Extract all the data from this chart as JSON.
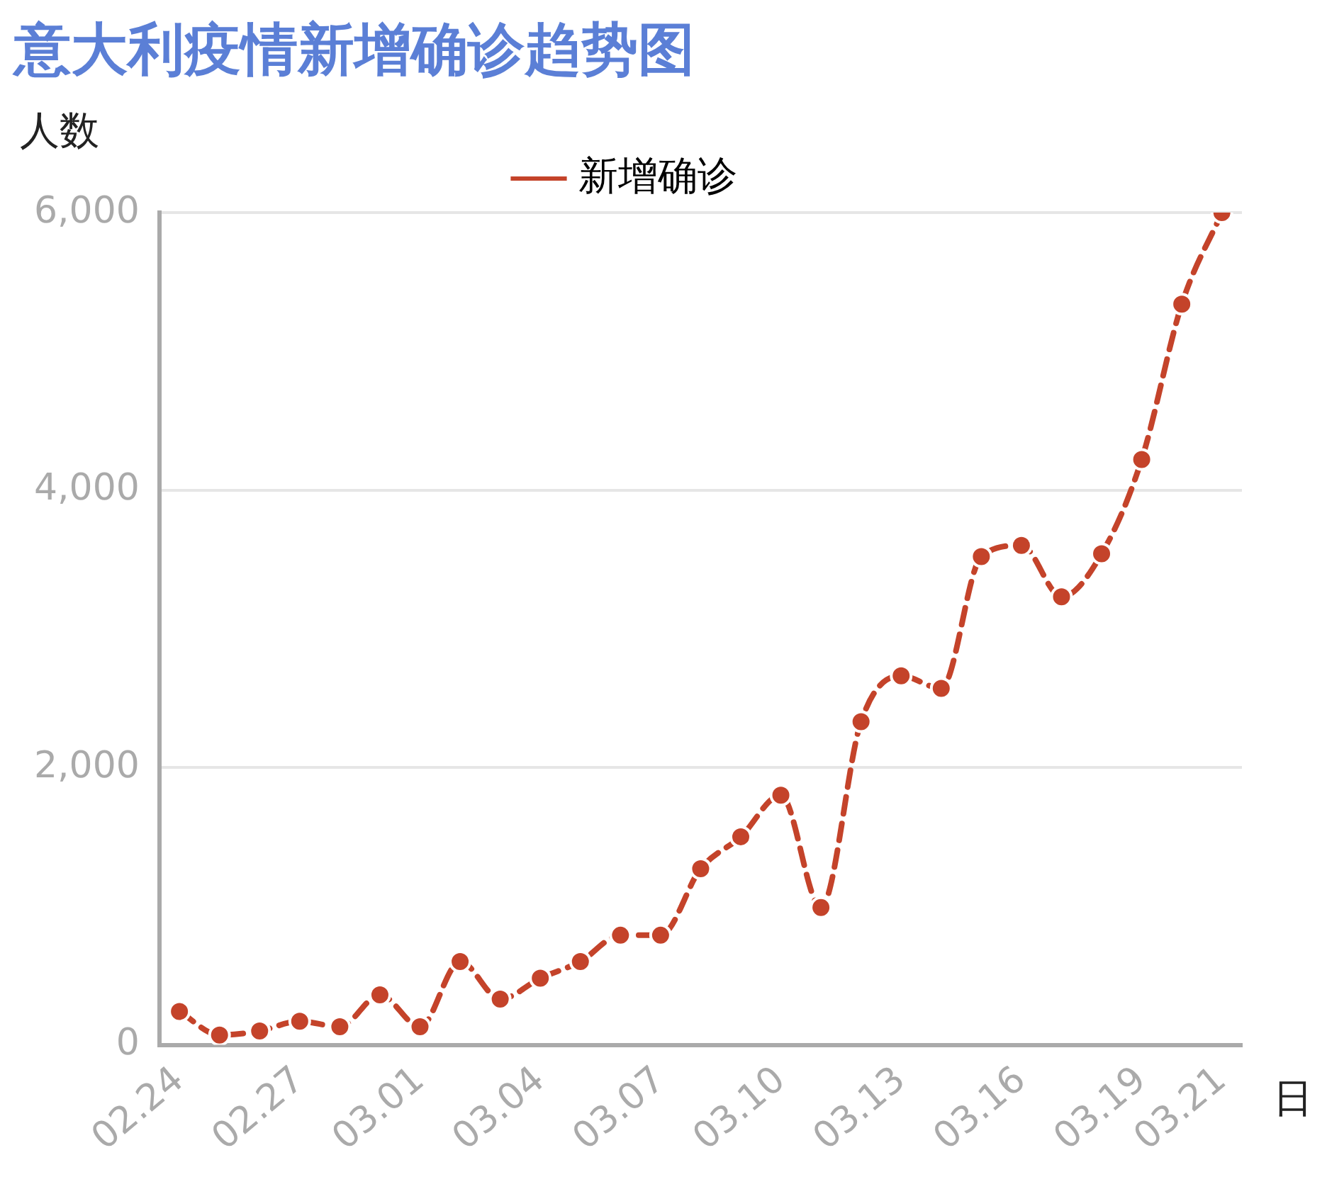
{
  "chart_data": {
    "type": "line",
    "title": "意大利疫情新增确诊趋势图",
    "xlabel": "日",
    "ylabel": "人数",
    "categories": [
      "02.24",
      null,
      null,
      "02.27",
      null,
      null,
      "03.01",
      null,
      null,
      "03.04",
      null,
      null,
      "03.07",
      null,
      null,
      "03.10",
      null,
      null,
      "03.13",
      null,
      null,
      "03.16",
      null,
      null,
      "03.19",
      null,
      "03.21"
    ],
    "series": [
      {
        "name": "新增确诊",
        "color": "#c4432a",
        "values": [
          240,
          70,
          100,
          170,
          130,
          360,
          130,
          600,
          330,
          480,
          600,
          790,
          790,
          1270,
          1500,
          1800,
          990,
          2330,
          2660,
          2570,
          3520,
          3600,
          3230,
          3540,
          4220,
          5340,
          6000
        ]
      }
    ],
    "ylim": [
      0,
      6000
    ],
    "yticks": [
      {
        "value": 0,
        "label": "0"
      },
      {
        "value": 2000,
        "label": "2,000"
      },
      {
        "value": 4000,
        "label": "4,000"
      },
      {
        "value": 6000,
        "label": "6,000"
      }
    ],
    "grid": "y",
    "legend": "top",
    "marker": "circle",
    "line_style": "dashed"
  }
}
